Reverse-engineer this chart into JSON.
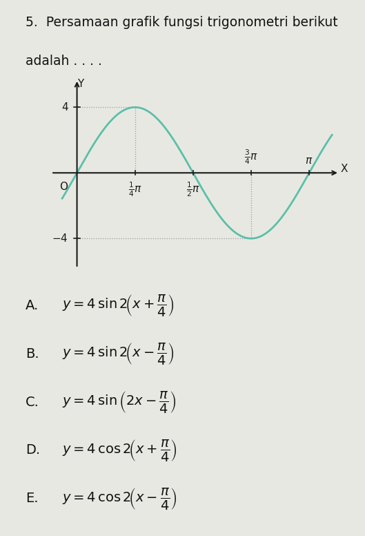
{
  "title_line1": "5.  Persamaan grafik fungsi trigonometri berikut",
  "title_line2": "adalah . . . .",
  "amplitude": 4,
  "freq": 2,
  "phase": 0,
  "curve_color": "#5bbfaa",
  "bg_color": "#e8e8e2",
  "tick_color": "#1a1a1a",
  "axis_color": "#1a1a1a",
  "dot_line_color": "#999999",
  "options": [
    [
      "A.",
      "$y = 4\\,\\sin 2\\!\\left(x + \\dfrac{\\pi}{4}\\right)$"
    ],
    [
      "B.",
      "$y = 4\\,\\sin 2\\!\\left(x - \\dfrac{\\pi}{4}\\right)$"
    ],
    [
      "C.",
      "$y = 4\\,\\sin \\left(2x - \\dfrac{\\pi}{4}\\right)$"
    ],
    [
      "D.",
      "$y = 4\\,\\cos 2\\!\\left(x + \\dfrac{\\pi}{4}\\right)$"
    ],
    [
      "E.",
      "$y = 4\\,\\cos 2\\!\\left(x - \\dfrac{\\pi}{4}\\right)$"
    ]
  ],
  "x_tick_positions": [
    0.7853981633974483,
    1.5707963267948966,
    2.356194490192345,
    3.141592653589793
  ],
  "x_tick_labels_below": [
    "$\\frac{1}{4}\\pi$",
    "$\\frac{1}{2}\\pi$"
  ],
  "x_tick_labels_above": [
    "$\\frac{3}{4}\\pi$",
    "$\\pi$"
  ],
  "y_ticks_pos": [
    4
  ],
  "y_ticks_neg": [
    -4
  ],
  "dotted_x_peak": 0.7853981633974483,
  "dotted_x_trough": 2.356194490192345,
  "x_plot_start": -0.2,
  "x_plot_end": 3.45,
  "xlim_left": -0.35,
  "xlim_right": 3.6,
  "ylim_bottom": -5.8,
  "ylim_top": 5.8
}
